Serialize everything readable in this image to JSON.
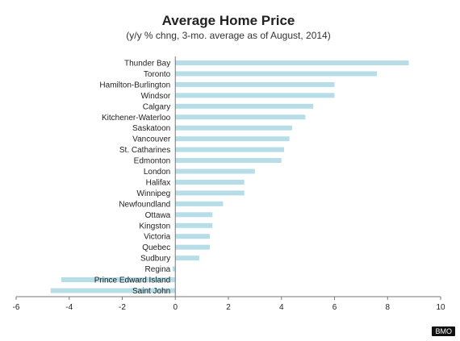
{
  "chart_data": {
    "type": "bar",
    "orientation": "horizontal",
    "title": "Average Home Price",
    "subtitle": "(y/y % chng, 3-mo. average as of August, 2014)",
    "categories": [
      "Thunder Bay",
      "Toronto",
      "Hamilton-Burlington",
      "Windsor",
      "Calgary",
      "Kitchener-Waterloo",
      "Saskatoon",
      "Vancouver",
      "St. Catharines",
      "Edmonton",
      "London",
      "Halifax",
      "Winnipeg",
      "Newfoundland",
      "Ottawa",
      "Kingston",
      "Victoria",
      "Quebec",
      "Sudbury",
      "Regina",
      "Prince Edward Island",
      "Saint John"
    ],
    "values": [
      8.8,
      7.6,
      6.0,
      6.0,
      5.2,
      4.9,
      4.4,
      4.3,
      4.1,
      4.0,
      3.0,
      2.6,
      2.6,
      1.8,
      1.4,
      1.4,
      1.3,
      1.3,
      0.9,
      -0.1,
      -4.3,
      -4.7
    ],
    "xlim": [
      -6,
      10
    ],
    "xticks": [
      -6,
      -4,
      -2,
      0,
      2,
      4,
      6,
      8,
      10
    ],
    "bar_color": "#b7dde8",
    "grid": false
  },
  "source": "BMO"
}
